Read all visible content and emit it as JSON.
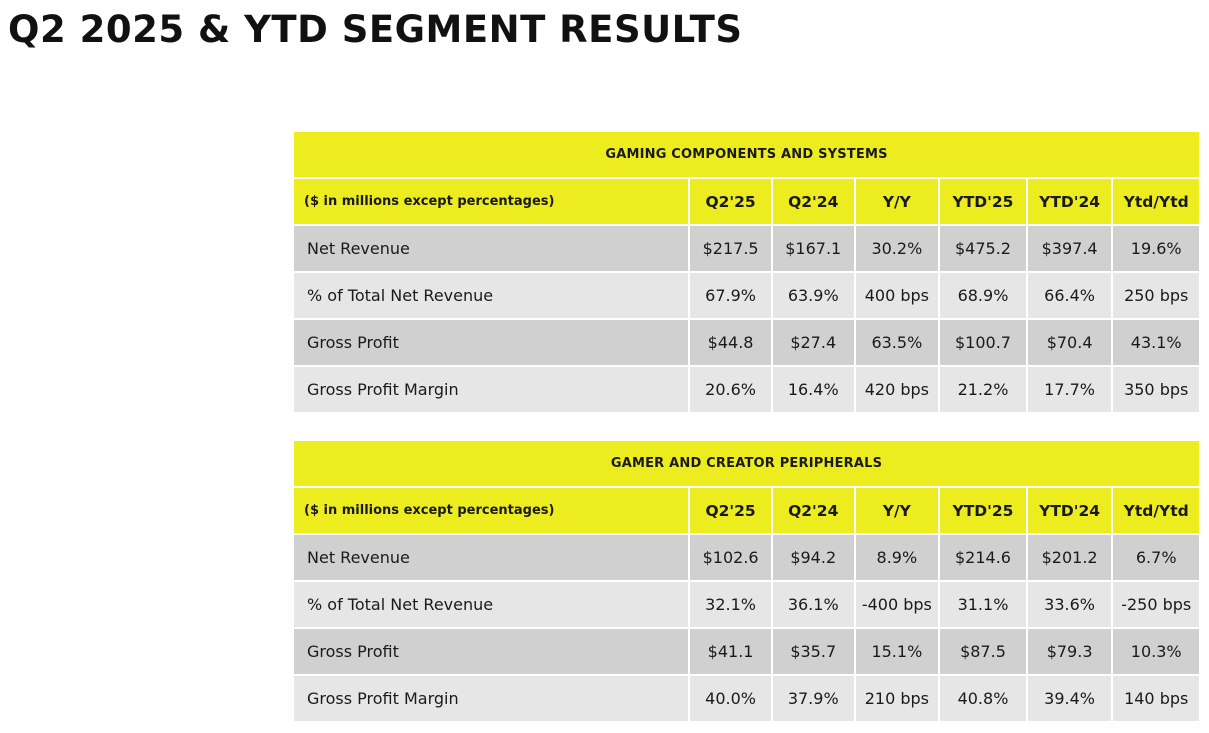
{
  "title": "Q2 2025 & YTD SEGMENT RESULTS",
  "segments": [
    {
      "name": "GAMING COMPONENTS AND SYSTEMS",
      "columns": [
        "($ in millions except percentages)",
        "Q2'25",
        "Q2'24",
        "Y/Y",
        "YTD'25",
        "YTD'24",
        "Ytd/Ytd"
      ],
      "rows": [
        [
          "Net Revenue",
          "$217.5",
          "$167.1",
          "30.2%",
          "$475.2",
          "$397.4",
          "19.6%"
        ],
        [
          "% of Total Net Revenue",
          "67.9%",
          "63.9%",
          "400 bps",
          "68.9%",
          "66.4%",
          "250 bps"
        ],
        [
          "Gross Profit",
          "$44.8",
          "$27.4",
          "63.5%",
          "$100.7",
          "$70.4",
          "43.1%"
        ],
        [
          "Gross Profit Margin",
          "20.6%",
          "16.4%",
          "420 bps",
          "21.2%",
          "17.7%",
          "350 bps"
        ]
      ]
    },
    {
      "name": "GAMER AND CREATOR PERIPHERALS",
      "columns": [
        "($ in millions except percentages)",
        "Q2'25",
        "Q2'24",
        "Y/Y",
        "YTD'25",
        "YTD'24",
        "Ytd/Ytd"
      ],
      "rows": [
        [
          "Net Revenue",
          "$102.6",
          "$94.2",
          "8.9%",
          "$214.6",
          "$201.2",
          "6.7%"
        ],
        [
          "% of Total Net Revenue",
          "32.1%",
          "36.1%",
          "-400 bps",
          "31.1%",
          "33.6%",
          "-250 bps"
        ],
        [
          "Gross Profit",
          "$41.1",
          "$35.7",
          "15.1%",
          "$87.5",
          "$79.3",
          "10.3%"
        ],
        [
          "Gross Profit Margin",
          "40.0%",
          "37.9%",
          "210 bps",
          "40.8%",
          "39.4%",
          "140 bps"
        ]
      ]
    }
  ]
}
